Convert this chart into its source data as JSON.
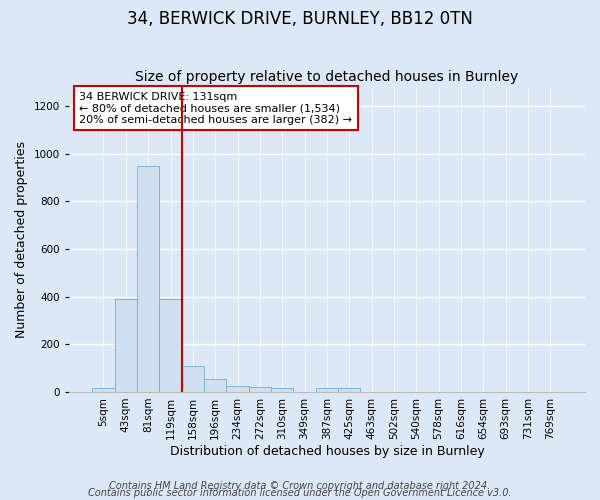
{
  "title1": "34, BERWICK DRIVE, BURNLEY, BB12 0TN",
  "title2": "Size of property relative to detached houses in Burnley",
  "xlabel": "Distribution of detached houses by size in Burnley",
  "ylabel": "Number of detached properties",
  "categories": [
    "5sqm",
    "43sqm",
    "81sqm",
    "119sqm",
    "158sqm",
    "196sqm",
    "234sqm",
    "272sqm",
    "310sqm",
    "349sqm",
    "387sqm",
    "425sqm",
    "463sqm",
    "502sqm",
    "540sqm",
    "578sqm",
    "616sqm",
    "654sqm",
    "693sqm",
    "731sqm",
    "769sqm"
  ],
  "values": [
    15,
    390,
    950,
    390,
    110,
    55,
    25,
    20,
    15,
    0,
    15,
    15,
    0,
    0,
    0,
    0,
    0,
    0,
    0,
    0,
    0
  ],
  "bar_color": "#d0e0f0",
  "bar_edge_color": "#7aaac8",
  "ylim": [
    0,
    1280
  ],
  "yticks": [
    0,
    200,
    400,
    600,
    800,
    1000,
    1200
  ],
  "red_line_x": 3.5,
  "annotation_line1": "34 BERWICK DRIVE: 131sqm",
  "annotation_line2": "← 80% of detached houses are smaller (1,534)",
  "annotation_line3": "20% of semi-detached houses are larger (382) →",
  "annotation_box_color": "#ffffff",
  "annotation_box_edge": "#cc0000",
  "footnote1": "Contains HM Land Registry data © Crown copyright and database right 2024.",
  "footnote2": "Contains public sector information licensed under the Open Government Licence v3.0.",
  "figure_bg_color": "#dce8f5",
  "plot_bg_color": "#dce8f5",
  "grid_color": "#ffffff",
  "title1_fontsize": 12,
  "title2_fontsize": 10,
  "tick_fontsize": 7.5,
  "ylabel_fontsize": 9,
  "xlabel_fontsize": 9,
  "footnote_fontsize": 7
}
